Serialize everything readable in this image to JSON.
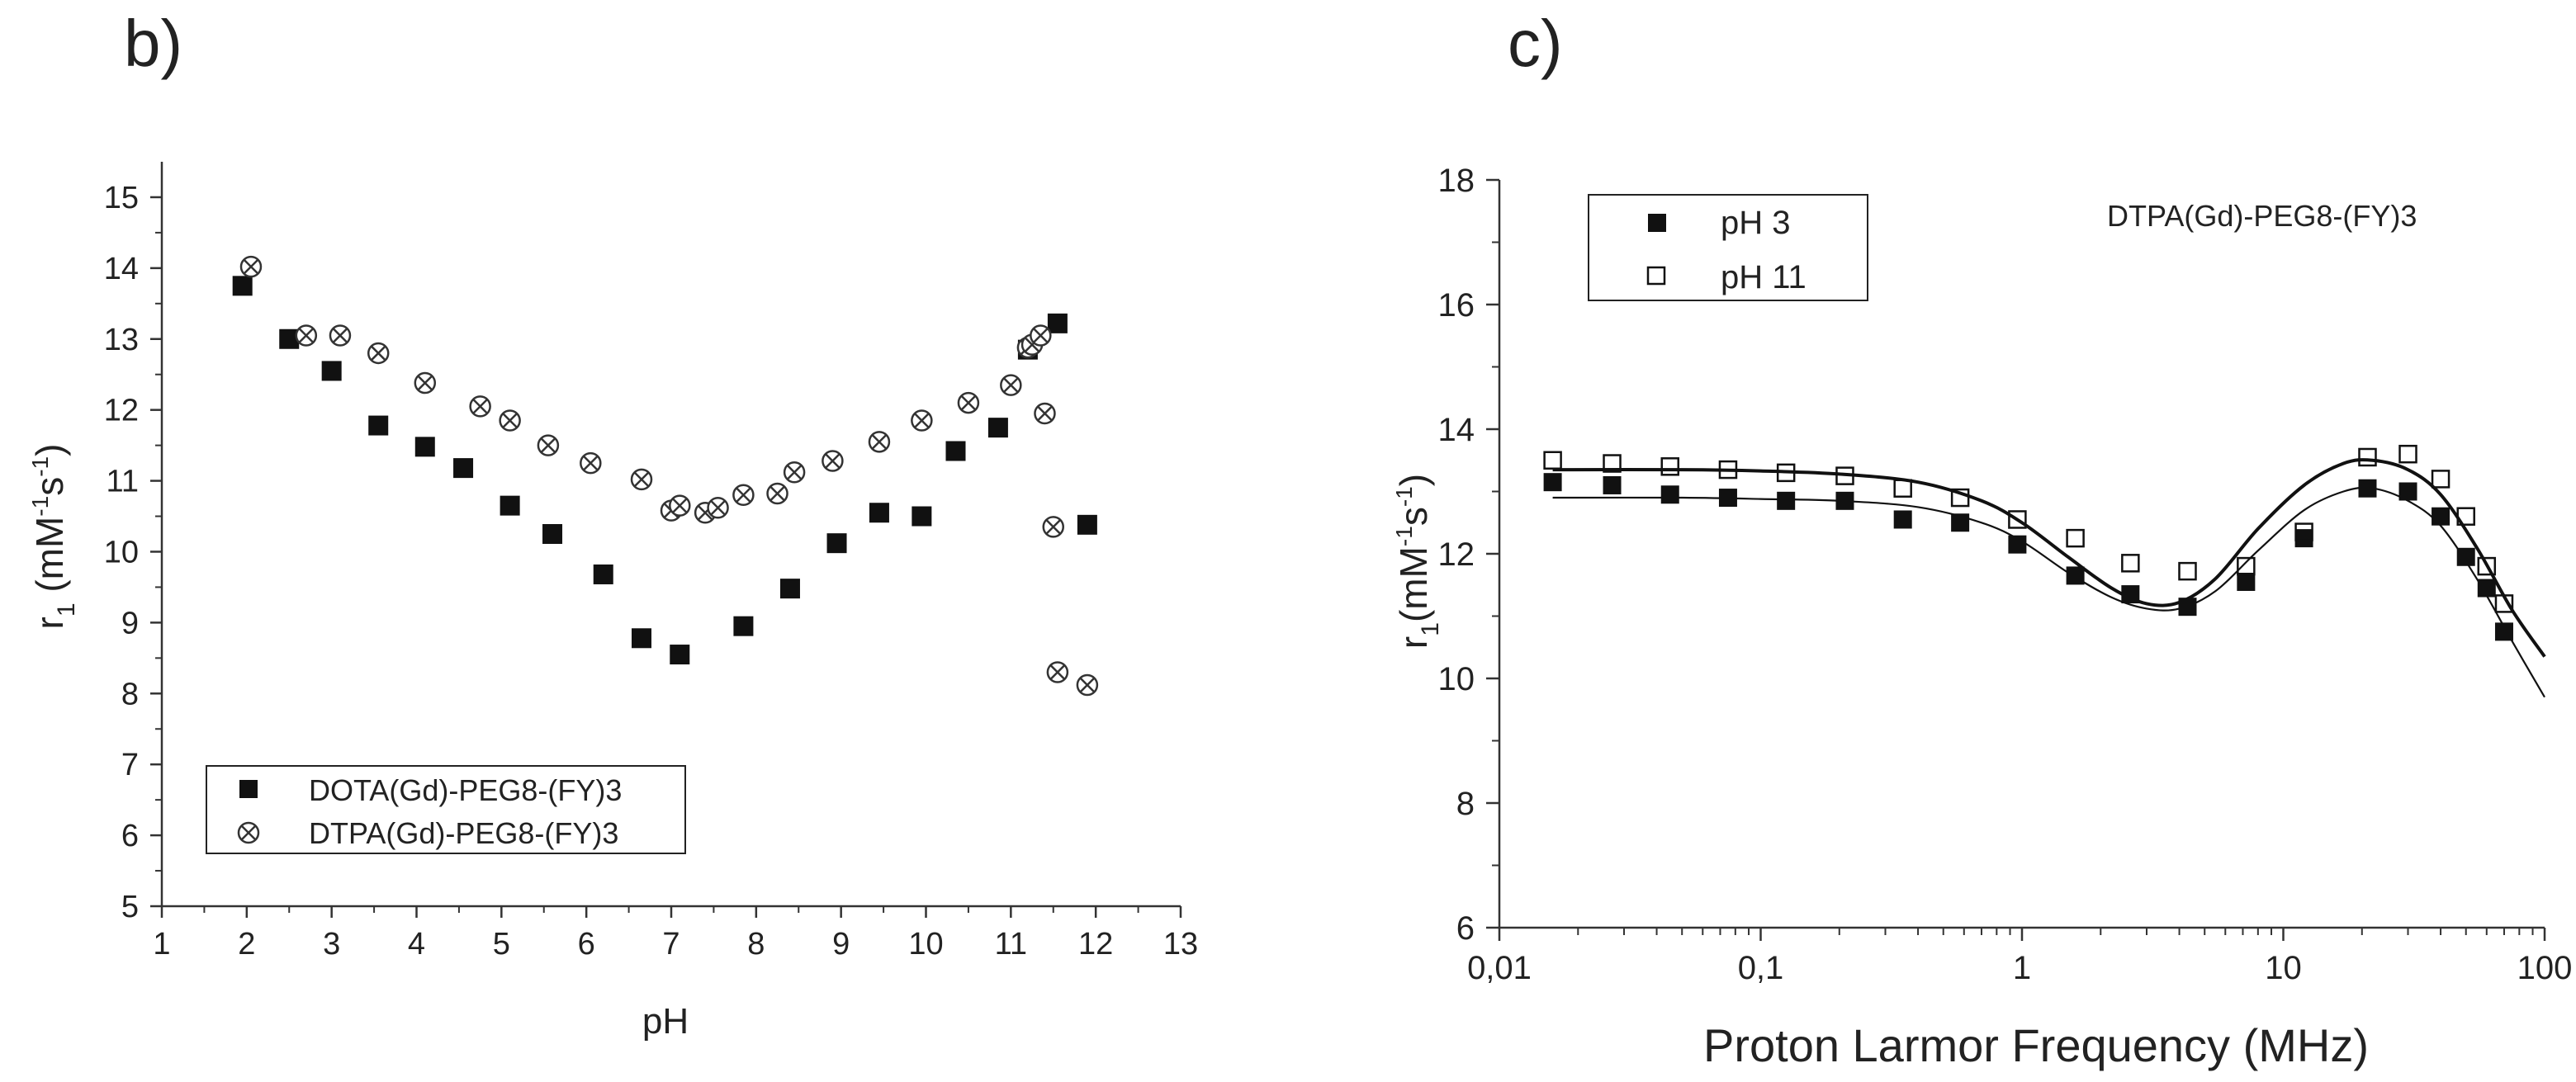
{
  "panels": {
    "b": {
      "label": "b)"
    },
    "c": {
      "label": "c)"
    }
  },
  "chart_data": [
    {
      "type": "scatter",
      "title": "",
      "xlabel": "pH",
      "ylabel_html": "r<sub>1</sub> (mM<sup>-1</sup>s<sup>-1</sup>)",
      "ylabel_parts": {
        "base": "r",
        "sub": "1",
        "paren_open": " (mM",
        "sup1": "-1",
        "mid": "s",
        "sup2": "-1",
        "paren_close": ")"
      },
      "xlim": [
        1,
        13
      ],
      "ylim": [
        5,
        15.5
      ],
      "xticks": [
        "1",
        "2",
        "3",
        "4",
        "5",
        "6",
        "7",
        "8",
        "9",
        "10",
        "11",
        "12",
        "13"
      ],
      "yticks": [
        "5",
        "6",
        "7",
        "8",
        "9",
        "10",
        "11",
        "12",
        "13",
        "14",
        "15"
      ],
      "legend_position": "bottom-left",
      "series": [
        {
          "name": "DOTA(Gd)-PEG8-(FY)3",
          "marker": "filled-square",
          "points": [
            [
              1.95,
              13.75
            ],
            [
              2.5,
              13.0
            ],
            [
              3.0,
              12.55
            ],
            [
              3.55,
              11.78
            ],
            [
              4.1,
              11.48
            ],
            [
              4.55,
              11.18
            ],
            [
              5.1,
              10.65
            ],
            [
              5.6,
              10.25
            ],
            [
              6.2,
              9.68
            ],
            [
              6.65,
              8.78
            ],
            [
              7.1,
              8.55
            ],
            [
              7.85,
              8.95
            ],
            [
              8.4,
              9.48
            ],
            [
              8.95,
              10.12
            ],
            [
              9.45,
              10.55
            ],
            [
              9.95,
              10.5
            ],
            [
              10.35,
              11.42
            ],
            [
              10.85,
              11.75
            ],
            [
              11.2,
              12.85
            ],
            [
              11.55,
              13.22
            ],
            [
              11.9,
              10.38
            ]
          ]
        },
        {
          "name": "DTPA(Gd)-PEG8-(FY)3",
          "marker": "crossed-circle",
          "points": [
            [
              2.05,
              14.02
            ],
            [
              2.7,
              13.05
            ],
            [
              3.1,
              13.05
            ],
            [
              3.55,
              12.8
            ],
            [
              4.1,
              12.38
            ],
            [
              4.75,
              12.05
            ],
            [
              5.1,
              11.85
            ],
            [
              5.55,
              11.5
            ],
            [
              6.05,
              11.25
            ],
            [
              6.65,
              11.02
            ],
            [
              7.0,
              10.58
            ],
            [
              7.1,
              10.65
            ],
            [
              7.4,
              10.55
            ],
            [
              7.55,
              10.62
            ],
            [
              7.85,
              10.8
            ],
            [
              8.25,
              10.82
            ],
            [
              8.45,
              11.12
            ],
            [
              8.9,
              11.28
            ],
            [
              9.45,
              11.55
            ],
            [
              9.95,
              11.85
            ],
            [
              10.5,
              12.1
            ],
            [
              11.0,
              12.35
            ],
            [
              11.2,
              12.88
            ],
            [
              11.25,
              12.92
            ],
            [
              11.35,
              13.05
            ],
            [
              11.4,
              11.95
            ],
            [
              11.5,
              10.35
            ],
            [
              11.55,
              8.3
            ],
            [
              11.9,
              8.12
            ]
          ]
        }
      ]
    },
    {
      "type": "scatter",
      "title": "",
      "annotation": "DTPA(Gd)-PEG8-(FY)3",
      "xlabel": "Proton Larmor Frequency (MHz)",
      "ylabel_parts": {
        "base": "r",
        "sub": "1",
        "paren_open": "(mM",
        "sup1": "-1",
        "mid": "s",
        "sup2": "-1",
        "paren_close": ")"
      },
      "xscale": "log",
      "xlim": [
        0.01,
        100
      ],
      "ylim": [
        6,
        18
      ],
      "xticks": [
        "0,01",
        "0,1",
        "1",
        "10",
        "100"
      ],
      "yticks": [
        "6",
        "8",
        "10",
        "12",
        "14",
        "16",
        "18"
      ],
      "legend_position": "top-left",
      "series": [
        {
          "name": "pH 3",
          "marker": "filled-square",
          "points": [
            [
              0.016,
              13.15
            ],
            [
              0.027,
              13.1
            ],
            [
              0.045,
              12.95
            ],
            [
              0.075,
              12.9
            ],
            [
              0.125,
              12.85
            ],
            [
              0.21,
              12.85
            ],
            [
              0.35,
              12.55
            ],
            [
              0.58,
              12.5
            ],
            [
              0.96,
              12.15
            ],
            [
              1.6,
              11.65
            ],
            [
              2.6,
              11.35
            ],
            [
              4.3,
              11.15
            ],
            [
              7.2,
              11.55
            ],
            [
              12.0,
              12.25
            ],
            [
              21.0,
              13.05
            ],
            [
              30.0,
              13.0
            ],
            [
              40.0,
              12.6
            ],
            [
              50.0,
              11.95
            ],
            [
              60.0,
              11.45
            ],
            [
              70.0,
              10.75
            ]
          ],
          "fit": [
            [
              0.016,
              12.9
            ],
            [
              0.05,
              12.9
            ],
            [
              0.1,
              12.88
            ],
            [
              0.2,
              12.85
            ],
            [
              0.4,
              12.75
            ],
            [
              0.7,
              12.5
            ],
            [
              1.0,
              12.2
            ],
            [
              1.5,
              11.7
            ],
            [
              2.2,
              11.3
            ],
            [
              3.0,
              11.12
            ],
            [
              4.0,
              11.12
            ],
            [
              5.5,
              11.4
            ],
            [
              8.0,
              12.05
            ],
            [
              12.0,
              12.7
            ],
            [
              17.0,
              13.0
            ],
            [
              22.0,
              13.05
            ],
            [
              30.0,
              12.85
            ],
            [
              40.0,
              12.45
            ],
            [
              55.0,
              11.6
            ],
            [
              75.0,
              10.6
            ],
            [
              100.0,
              9.7
            ]
          ]
        },
        {
          "name": "pH 11",
          "marker": "open-square",
          "points": [
            [
              0.016,
              13.5
            ],
            [
              0.027,
              13.45
            ],
            [
              0.045,
              13.4
            ],
            [
              0.075,
              13.35
            ],
            [
              0.125,
              13.3
            ],
            [
              0.21,
              13.25
            ],
            [
              0.35,
              13.05
            ],
            [
              0.58,
              12.9
            ],
            [
              0.96,
              12.55
            ],
            [
              1.6,
              12.25
            ],
            [
              2.6,
              11.85
            ],
            [
              4.3,
              11.72
            ],
            [
              7.2,
              11.8
            ],
            [
              12.0,
              12.35
            ],
            [
              21.0,
              13.55
            ],
            [
              30.0,
              13.6
            ],
            [
              40.0,
              13.2
            ],
            [
              50.0,
              12.6
            ],
            [
              60.0,
              11.8
            ],
            [
              70.0,
              11.2
            ]
          ],
          "fit": [
            [
              0.016,
              13.35
            ],
            [
              0.05,
              13.35
            ],
            [
              0.1,
              13.33
            ],
            [
              0.2,
              13.28
            ],
            [
              0.4,
              13.15
            ],
            [
              0.7,
              12.85
            ],
            [
              1.0,
              12.5
            ],
            [
              1.5,
              11.95
            ],
            [
              2.2,
              11.45
            ],
            [
              3.0,
              11.2
            ],
            [
              4.0,
              11.22
            ],
            [
              5.5,
              11.6
            ],
            [
              8.0,
              12.4
            ],
            [
              12.0,
              13.1
            ],
            [
              17.0,
              13.45
            ],
            [
              22.0,
              13.5
            ],
            [
              30.0,
              13.35
            ],
            [
              40.0,
              12.95
            ],
            [
              55.0,
              12.1
            ],
            [
              75.0,
              11.1
            ],
            [
              100.0,
              10.35
            ]
          ]
        }
      ]
    }
  ]
}
